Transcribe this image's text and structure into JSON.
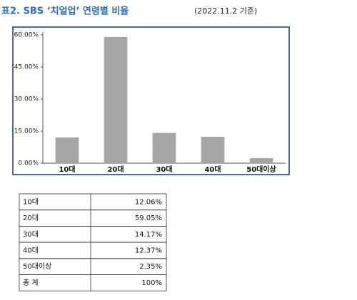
{
  "header": {
    "title": "표2. SBS ‘치얼업’ 연령별 비율",
    "note": "(2022.11.2 기준)"
  },
  "chart_data": {
    "type": "bar",
    "categories": [
      "10대",
      "20대",
      "30대",
      "40대",
      "50대이상"
    ],
    "values": [
      12.06,
      59.05,
      14.17,
      12.37,
      2.35
    ],
    "color": "#a6a6a6",
    "ylim": [
      0,
      60
    ],
    "yticks": [
      {
        "value": 0,
        "label": "0.00%"
      },
      {
        "value": 15,
        "label": "15.00%"
      },
      {
        "value": 30,
        "label": "30.00%"
      },
      {
        "value": 45,
        "label": "45.00%"
      },
      {
        "value": 60,
        "label": "60.00%"
      }
    ],
    "grid": false
  },
  "table": {
    "rows": [
      [
        "10대",
        "12.06%"
      ],
      [
        "20대",
        "59.05%"
      ],
      [
        "30대",
        "14.17%"
      ],
      [
        "40대",
        "12.37%"
      ],
      [
        "50대이상",
        "2.35%"
      ],
      [
        "총 계",
        "100%"
      ]
    ]
  }
}
